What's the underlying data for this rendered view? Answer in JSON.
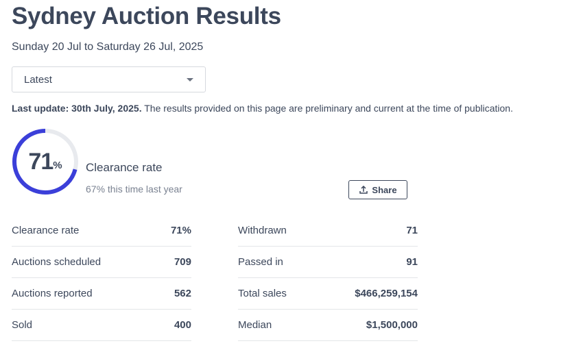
{
  "page": {
    "title": "Sydney Auction Results",
    "date_range": "Sunday 20 Jul to Saturday 26 Jul, 2025"
  },
  "filter": {
    "selected": "Latest"
  },
  "update": {
    "label": "Last update: 30th July, 2025.",
    "note": " The results provided on this page are preliminary and current at the time of publication."
  },
  "summary": {
    "clearance_value": "71",
    "clearance_unit": "%",
    "clearance_fraction": 0.71,
    "label": "Clearance rate",
    "prior_year": "67% this time last year",
    "accent_color": "#3b3fd9",
    "track_color": "#e8eaee"
  },
  "share": {
    "label": "Share",
    "icon": "share-upload-icon"
  },
  "stats_left": [
    {
      "label": "Clearance rate",
      "value": "71%"
    },
    {
      "label": "Auctions scheduled",
      "value": "709"
    },
    {
      "label": "Auctions reported",
      "value": "562"
    },
    {
      "label": "Sold",
      "value": "400"
    }
  ],
  "stats_right": [
    {
      "label": "Withdrawn",
      "value": "71"
    },
    {
      "label": "Passed in",
      "value": "91"
    },
    {
      "label": "Total sales",
      "value": "$466,259,154"
    },
    {
      "label": "Median",
      "value": "$1,500,000"
    }
  ]
}
